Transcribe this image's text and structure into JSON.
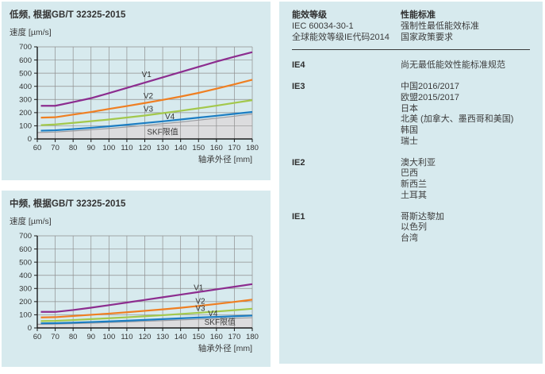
{
  "colors": {
    "panel_bg": "#d7eaee",
    "grid": "#8f8f8f",
    "axis": "#1a1a1a",
    "text": "#3c3c3c",
    "v1_purple": "#8c2d8f",
    "v2_orange": "#ef7f22",
    "v3_green": "#a3c84c",
    "v4_blue": "#1c7dc2",
    "limit_fill": "#dcdcde",
    "limit_line": "#9b9ba0"
  },
  "chart_data": [
    {
      "type": "line",
      "title": "低频, 根据GB/T 32325-2015",
      "ylabel": "速度 [µm/s]",
      "xlabel": "轴承外径 [mm]",
      "xlim": [
        60,
        180
      ],
      "ylim": [
        0,
        700
      ],
      "x_tick_step": 10,
      "y_tick_step": 100,
      "grid": true,
      "x": [
        62,
        70,
        80,
        90,
        100,
        110,
        120,
        130,
        140,
        150,
        160,
        170,
        180
      ],
      "series": [
        {
          "name": "V1",
          "color": "#8c2d8f",
          "values": [
            252,
            252,
            280,
            310,
            348,
            388,
            428,
            468,
            508,
            548,
            588,
            625,
            660
          ],
          "label_x": 121,
          "label_y": 492
        },
        {
          "name": "V2",
          "color": "#ef7f22",
          "values": [
            162,
            165,
            185,
            205,
            228,
            250,
            273,
            297,
            322,
            350,
            382,
            415,
            450
          ],
          "label_x": 122,
          "label_y": 330
        },
        {
          "name": "V3",
          "color": "#a3c84c",
          "values": [
            105,
            110,
            122,
            135,
            148,
            163,
            178,
            196,
            214,
            233,
            253,
            274,
            295
          ],
          "label_x": 122,
          "label_y": 228
        },
        {
          "name": "V4",
          "color": "#1c7dc2",
          "values": [
            63,
            66,
            75,
            85,
            96,
            108,
            121,
            134,
            148,
            162,
            176,
            191,
            205
          ],
          "label_x": 134,
          "label_y": 172
        }
      ],
      "limit_area": {
        "name": "SKF限值",
        "fill": "#dcdcde",
        "line": "#9b9ba0",
        "x": [
          60,
          70,
          80,
          90,
          100,
          110,
          120,
          130,
          140,
          150,
          160,
          170,
          180
        ],
        "values": [
          49,
          53,
          61,
          70,
          80,
          91,
          103,
          116,
          129,
          143,
          158,
          173,
          190
        ],
        "label_x": 130,
        "label_y": 55
      }
    },
    {
      "type": "line",
      "title": "中频, 根据GB/T 32325-2015",
      "ylabel": "速度 [µm/s]",
      "xlabel": "轴承外径 [mm]",
      "xlim": [
        60,
        180
      ],
      "ylim": [
        0,
        700
      ],
      "x_tick_step": 10,
      "y_tick_step": 100,
      "grid": true,
      "x": [
        62,
        70,
        80,
        90,
        100,
        110,
        120,
        130,
        140,
        150,
        160,
        170,
        180
      ],
      "series": [
        {
          "name": "V1",
          "color": "#8c2d8f",
          "values": [
            122,
            122,
            136,
            154,
            173,
            193,
            213,
            233,
            253,
            273,
            293,
            313,
            333
          ],
          "label_x": 150,
          "label_y": 308
        },
        {
          "name": "V2",
          "color": "#ef7f22",
          "values": [
            80,
            82,
            91,
            100,
            109,
            119,
            130,
            141,
            153,
            167,
            182,
            198,
            215
          ],
          "label_x": 151,
          "label_y": 205
        },
        {
          "name": "V3",
          "color": "#a3c84c",
          "values": [
            52,
            54,
            60,
            67,
            74,
            81,
            89,
            97,
            106,
            115,
            125,
            135,
            146
          ],
          "label_x": 151,
          "label_y": 150
        },
        {
          "name": "V4",
          "color": "#1c7dc2",
          "values": [
            35,
            36,
            40,
            45,
            50,
            55,
            61,
            67,
            73,
            79,
            84,
            89,
            94
          ],
          "label_x": 158,
          "label_y": 112
        }
      ],
      "limit_area": {
        "name": "SKF限值",
        "fill": "#dcdcde",
        "line": "#9b9ba0",
        "x": [
          60,
          70,
          80,
          90,
          100,
          110,
          120,
          130,
          140,
          150,
          160,
          170,
          180
        ],
        "values": [
          28,
          29,
          33,
          37,
          41,
          46,
          51,
          56,
          61,
          66,
          70,
          74,
          78
        ],
        "label_x": 162,
        "label_y": 46
      }
    }
  ],
  "table": {
    "header": {
      "col1": [
        "能效等级",
        "IEC 60034-30-1",
        "全球能效等级IE代码2014"
      ],
      "col2": [
        "性能标准",
        "强制性最低能效标准",
        "国家政策要求"
      ]
    },
    "rows": [
      {
        "grade": "IE4",
        "regions": [
          "尚无最低能效性能标准规范"
        ]
      },
      {
        "grade": "IE3",
        "regions": [
          "中国2016/2017",
          "欧盟2015/2017",
          "日本",
          "北美 (加拿大、墨西哥和美国)",
          "韩国",
          "瑞士"
        ]
      },
      {
        "grade": "IE2",
        "regions": [
          "澳大利亚",
          "巴西",
          "新西兰",
          "土耳其"
        ]
      },
      {
        "grade": "IE1",
        "regions": [
          "哥斯达黎加",
          "以色列",
          "台湾"
        ]
      }
    ]
  }
}
